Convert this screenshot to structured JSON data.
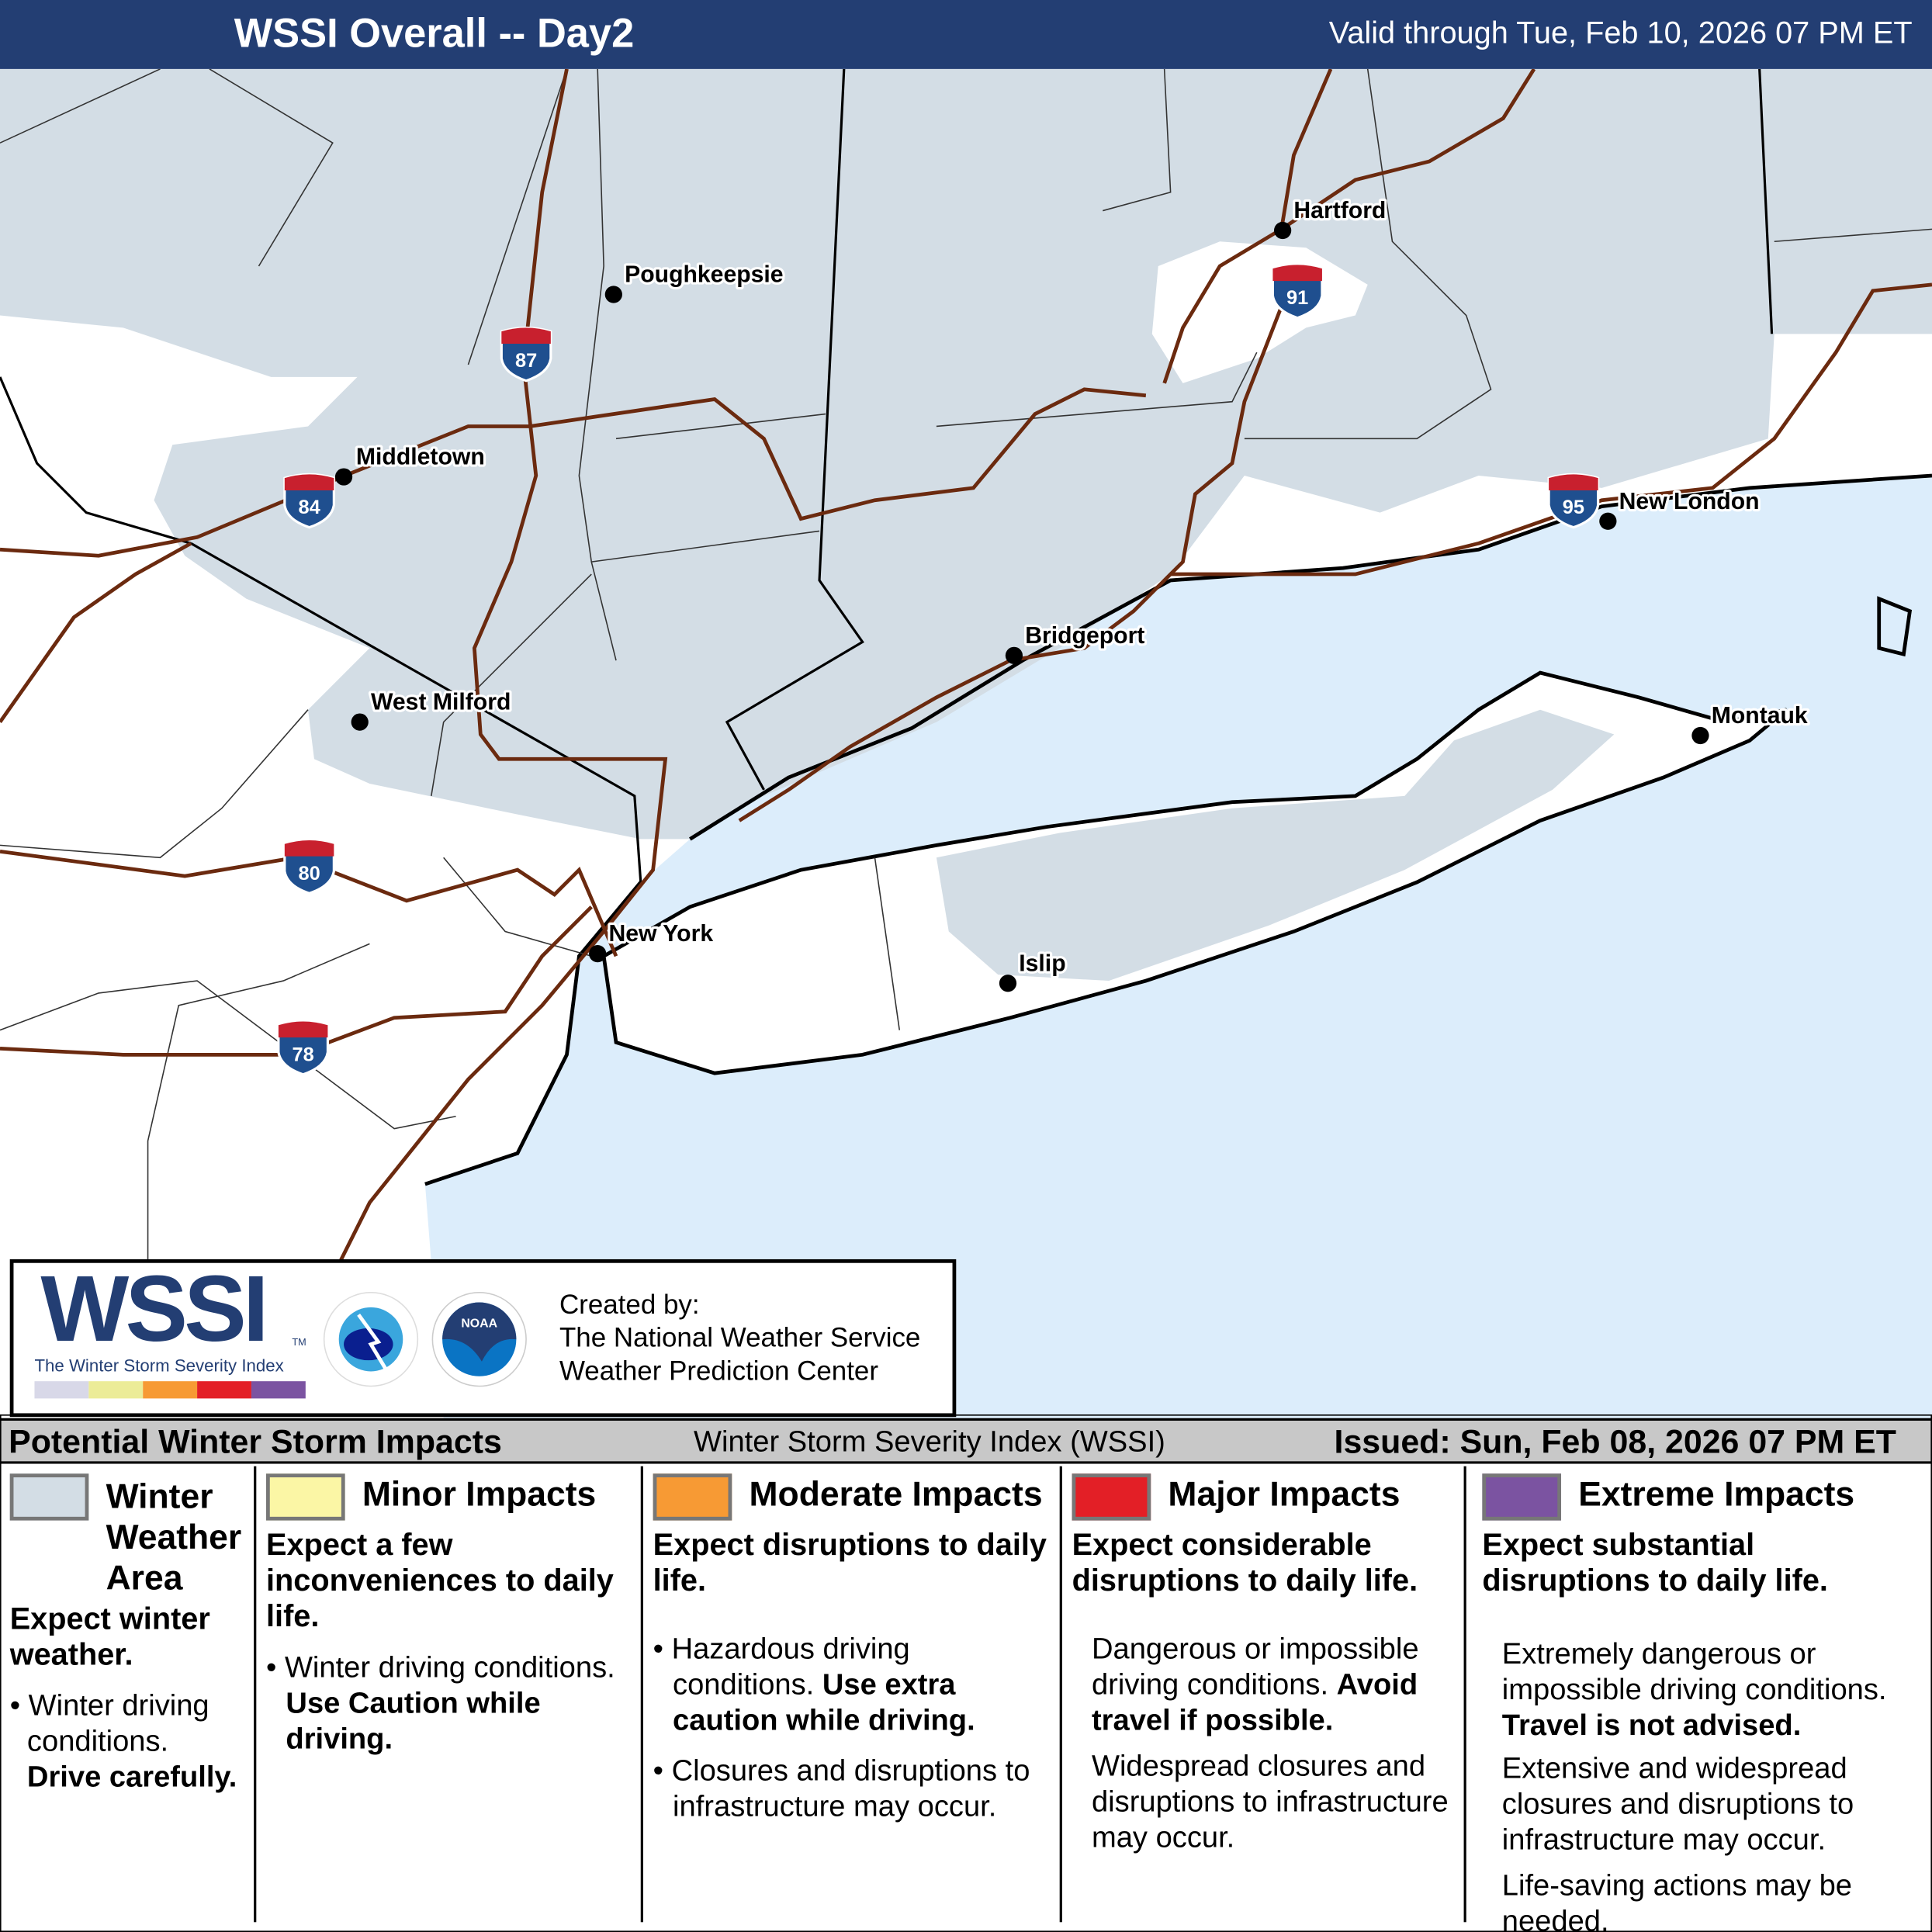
{
  "header": {
    "title": "WSSI Overall -- Day2",
    "valid": "Valid through Tue, Feb 10, 2026 07 PM ET"
  },
  "map": {
    "colors": {
      "water": "#dcedfb",
      "land": "#ffffff",
      "winter_weather_area": "#d3dde5",
      "roads": "#6b2a0f",
      "shield_blue": "#1f4f8f",
      "shield_red": "#c8202e"
    },
    "cities": [
      "Hartford",
      "Poughkeepsie",
      "Middletown",
      "New London",
      "Bridgeport",
      "West Milford",
      "Montauk",
      "New York",
      "Islip"
    ],
    "interstates": [
      "87",
      "84",
      "91",
      "95",
      "80",
      "78"
    ]
  },
  "logo": {
    "wssi": "WSSI",
    "tm": "TM",
    "subtitle": "The Winter Storm Severity Index",
    "scale_colors": [
      "#d8d8e8",
      "#ecec98",
      "#f79a34",
      "#e31f26",
      "#7b53a1"
    ],
    "nws_text": "NATIONAL WEATHER SERVICE",
    "noaa_text": "NOAA",
    "created_by": "Created by:",
    "org1": "The National Weather Service",
    "org2": "Weather Prediction Center"
  },
  "legend": {
    "title": "Potential Winter Storm Impacts",
    "center": "Winter Storm Severity Index (WSSI)",
    "issued": "Issued: Sun, Feb 08, 2026 07 PM ET",
    "categories": [
      {
        "name": "Winter Weather Area",
        "color": "#d3dde5",
        "summary": "Expect winter weather.",
        "b1": "Winter driving conditions.",
        "b1_bold": "Drive carefully."
      },
      {
        "name": "Minor Impacts",
        "color": "#fbf6a5",
        "summary": "Expect a few inconveniences to daily life.",
        "b1": "Winter driving conditions.",
        "b1_bold": "Use Caution while driving."
      },
      {
        "name": "Moderate Impacts",
        "color": "#f79a34",
        "summary": "Expect disruptions to daily life.",
        "b1": "Hazardous driving conditions.",
        "b1_bold": "Use extra caution while driving.",
        "b2": "Closures and disruptions to infrastructure may occur."
      },
      {
        "name": "Major Impacts",
        "color": "#e31f26",
        "summary": "Expect considerable disruptions to daily life.",
        "b1": "Dangerous or impossible driving conditions.",
        "b1_bold": "Avoid travel if possible.",
        "b2": "Widespread closures and disruptions to infrastructure may occur."
      },
      {
        "name": "Extreme Impacts",
        "color": "#7b53a1",
        "summary": "Expect substantial disruptions to daily life.",
        "b1": "Extremely dangerous or impossible driving conditions.",
        "b1_bold": "Travel is not advised.",
        "b2": "Extensive and widespread closures and disruptions to infrastructure may occur.",
        "b3": "Life-saving actions may be needed."
      }
    ]
  }
}
